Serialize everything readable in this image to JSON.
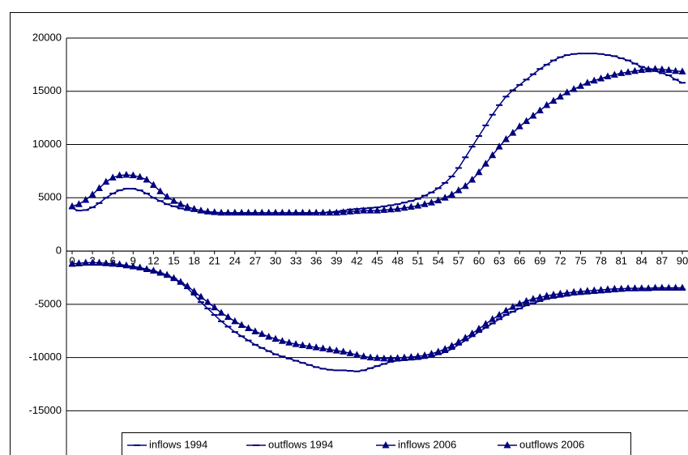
{
  "chart_data": {
    "type": "line",
    "x": [
      0,
      1,
      2,
      3,
      4,
      5,
      6,
      7,
      8,
      9,
      10,
      11,
      12,
      13,
      14,
      15,
      16,
      17,
      18,
      19,
      20,
      21,
      22,
      23,
      24,
      25,
      26,
      27,
      28,
      29,
      30,
      31,
      32,
      33,
      34,
      35,
      36,
      37,
      38,
      39,
      40,
      41,
      42,
      43,
      44,
      45,
      46,
      47,
      48,
      49,
      50,
      51,
      52,
      53,
      54,
      55,
      56,
      57,
      58,
      59,
      60,
      61,
      62,
      63,
      64,
      65,
      66,
      67,
      68,
      69,
      70,
      71,
      72,
      73,
      74,
      75,
      76,
      77,
      78,
      79,
      80,
      81,
      82,
      83,
      84,
      85,
      86,
      87,
      88,
      89,
      90
    ],
    "xlim": [
      0,
      90
    ],
    "xticks": [
      0,
      3,
      6,
      9,
      12,
      15,
      18,
      21,
      24,
      27,
      30,
      33,
      36,
      39,
      42,
      45,
      48,
      51,
      54,
      57,
      60,
      63,
      66,
      69,
      72,
      75,
      78,
      81,
      84,
      87,
      90
    ],
    "ylim": [
      -19000,
      20000
    ],
    "yticks": [
      20000,
      15000,
      10000,
      5000,
      0,
      -5000,
      -10000,
      -15000
    ],
    "grid": true,
    "legend": "bottom",
    "series": [
      {
        "name": "inflows 1994",
        "color": "#000080",
        "marker": "dash",
        "values": [
          4000,
          3800,
          3850,
          4100,
          4500,
          5000,
          5400,
          5700,
          5850,
          5850,
          5700,
          5400,
          5000,
          4700,
          4400,
          4200,
          4000,
          3850,
          3750,
          3650,
          3600,
          3550,
          3550,
          3500,
          3500,
          3500,
          3500,
          3450,
          3450,
          3450,
          3450,
          3450,
          3450,
          3450,
          3500,
          3500,
          3550,
          3600,
          3650,
          3700,
          3800,
          3900,
          3950,
          4000,
          4050,
          4100,
          4200,
          4300,
          4400,
          4550,
          4700,
          4900,
          5200,
          5500,
          5900,
          6400,
          7000,
          7800,
          8800,
          9800,
          10800,
          11800,
          12800,
          13700,
          14500,
          15100,
          15600,
          16100,
          16600,
          17100,
          17500,
          17900,
          18200,
          18400,
          18500,
          18550,
          18550,
          18550,
          18500,
          18400,
          18300,
          18100,
          17900,
          17600,
          17300,
          17100,
          16900,
          16700,
          16500,
          16100,
          15800
        ]
      },
      {
        "name": "outflows 1994",
        "color": "#000080",
        "marker": "dash",
        "values": [
          -1400,
          -1350,
          -1300,
          -1300,
          -1300,
          -1300,
          -1350,
          -1400,
          -1450,
          -1550,
          -1650,
          -1750,
          -1900,
          -2100,
          -2300,
          -2600,
          -3000,
          -3500,
          -4100,
          -4800,
          -5400,
          -6000,
          -6600,
          -7100,
          -7600,
          -8000,
          -8400,
          -8800,
          -9100,
          -9400,
          -9700,
          -9900,
          -10100,
          -10300,
          -10500,
          -10700,
          -10900,
          -11050,
          -11150,
          -11200,
          -11200,
          -11250,
          -11300,
          -11200,
          -11000,
          -10800,
          -10600,
          -10400,
          -10300,
          -10250,
          -10200,
          -10150,
          -10050,
          -9900,
          -9700,
          -9500,
          -9200,
          -8800,
          -8400,
          -8000,
          -7600,
          -7200,
          -6800,
          -6400,
          -6000,
          -5700,
          -5400,
          -5100,
          -4900,
          -4700,
          -4500,
          -4400,
          -4300,
          -4200,
          -4100,
          -4050,
          -4000,
          -3950,
          -3900,
          -3850,
          -3800,
          -3750,
          -3700,
          -3700,
          -3650,
          -3650,
          -3600,
          -3600,
          -3600,
          -3600,
          -3600
        ]
      },
      {
        "name": "inflows 2006",
        "color": "#000080",
        "marker": "triangle",
        "values": [
          4200,
          4400,
          4800,
          5300,
          5900,
          6500,
          6900,
          7100,
          7150,
          7100,
          6950,
          6700,
          6200,
          5600,
          5100,
          4700,
          4400,
          4150,
          3950,
          3800,
          3700,
          3650,
          3600,
          3600,
          3600,
          3600,
          3600,
          3600,
          3600,
          3600,
          3600,
          3600,
          3600,
          3600,
          3600,
          3600,
          3600,
          3600,
          3600,
          3600,
          3650,
          3700,
          3750,
          3800,
          3800,
          3800,
          3850,
          3900,
          3950,
          4050,
          4150,
          4250,
          4400,
          4550,
          4750,
          5000,
          5300,
          5700,
          6100,
          6700,
          7400,
          8200,
          9000,
          9800,
          10500,
          11100,
          11700,
          12200,
          12700,
          13200,
          13700,
          14100,
          14500,
          14900,
          15200,
          15500,
          15800,
          16000,
          16200,
          16400,
          16550,
          16700,
          16800,
          16900,
          17000,
          17050,
          17100,
          17050,
          17000,
          16900,
          16850
        ]
      },
      {
        "name": "outflows 2006",
        "color": "#000080",
        "marker": "triangle",
        "values": [
          -1200,
          -1150,
          -1100,
          -1100,
          -1100,
          -1150,
          -1200,
          -1250,
          -1350,
          -1450,
          -1550,
          -1700,
          -1850,
          -2050,
          -2250,
          -2550,
          -2900,
          -3300,
          -3800,
          -4300,
          -4800,
          -5300,
          -5800,
          -6200,
          -6600,
          -6950,
          -7250,
          -7550,
          -7800,
          -8050,
          -8250,
          -8450,
          -8600,
          -8750,
          -8850,
          -8950,
          -9050,
          -9150,
          -9250,
          -9350,
          -9450,
          -9600,
          -9750,
          -9900,
          -10000,
          -10050,
          -10100,
          -10100,
          -10050,
          -10000,
          -9950,
          -9900,
          -9800,
          -9650,
          -9450,
          -9200,
          -8900,
          -8550,
          -8150,
          -7750,
          -7300,
          -6850,
          -6400,
          -6000,
          -5600,
          -5250,
          -4950,
          -4700,
          -4500,
          -4350,
          -4200,
          -4100,
          -4000,
          -3950,
          -3850,
          -3800,
          -3750,
          -3700,
          -3650,
          -3600,
          -3550,
          -3550,
          -3500,
          -3500,
          -3500,
          -3500,
          -3450,
          -3450,
          -3450,
          -3450,
          -3450
        ]
      }
    ]
  }
}
